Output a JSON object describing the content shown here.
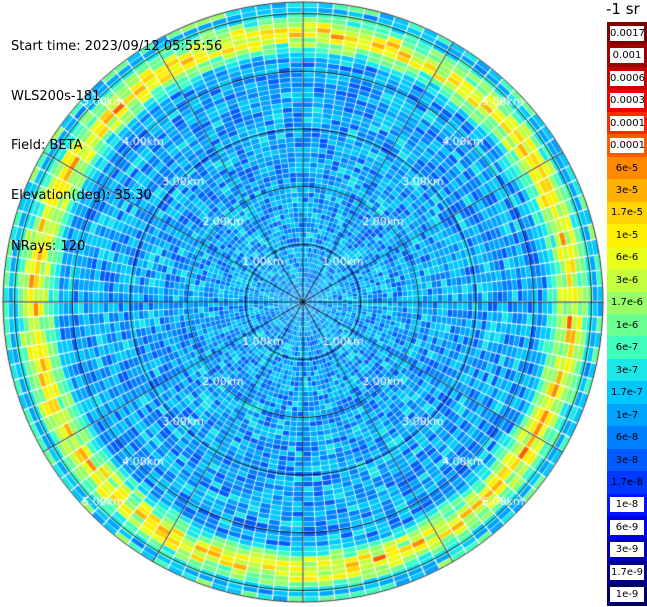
{
  "header": {
    "start_time": "Start time: 2023/09/12 05:55:56",
    "instrument": "WLS200s-181",
    "field": "Field: BETA",
    "elevation": "Elevation(deg): 35.30",
    "nrays": "NRays: 120"
  },
  "colorbar": {
    "title": "-1 sr",
    "labels": [
      "0.0017",
      "0.001",
      "0.0006",
      "0.0003",
      "0.00017",
      "0.0001",
      "6e-5",
      "3e-5",
      "1.7e-5",
      "1e-5",
      "6e-6",
      "3e-6",
      "1.7e-6",
      "1e-6",
      "6e-7",
      "3e-7",
      "1.7e-7",
      "1e-7",
      "6e-8",
      "3e-8",
      "1.7e-8",
      "1e-8",
      "6e-9",
      "3e-9",
      "1.7e-9",
      "1e-9"
    ],
    "colors": [
      "#7f0000",
      "#a00000",
      "#c80000",
      "#f00000",
      "#ff2a00",
      "#ff5a00",
      "#ff8a00",
      "#ffb000",
      "#ffd400",
      "#fff000",
      "#e8ff1a",
      "#c4ff3c",
      "#98ff66",
      "#6cff90",
      "#40ffbc",
      "#1ae8e8",
      "#00c8ff",
      "#00a4ff",
      "#0080ff",
      "#005cff",
      "#0038ff",
      "#0014ff",
      "#0000e0",
      "#0000b4",
      "#00008c",
      "#000064"
    ]
  },
  "chart_data": {
    "type": "heatmap",
    "projection": "polar PPI",
    "rays": 120,
    "range_rings_km": [
      1,
      2,
      3,
      4,
      5
    ],
    "ring_labels": [
      "1.00km",
      "2.00km",
      "3.00km",
      "4.00km",
      "5.00km"
    ],
    "max_range_km": 5.2,
    "field": "BETA",
    "elevation_deg": 35.3,
    "value_range": [
      1e-09,
      0.0017
    ],
    "description_of_pattern": {
      "background_level": 1e-07,
      "enhanced_band_km": [
        4.2,
        5.1
      ],
      "band_peak_level": 3e-05
    }
  }
}
